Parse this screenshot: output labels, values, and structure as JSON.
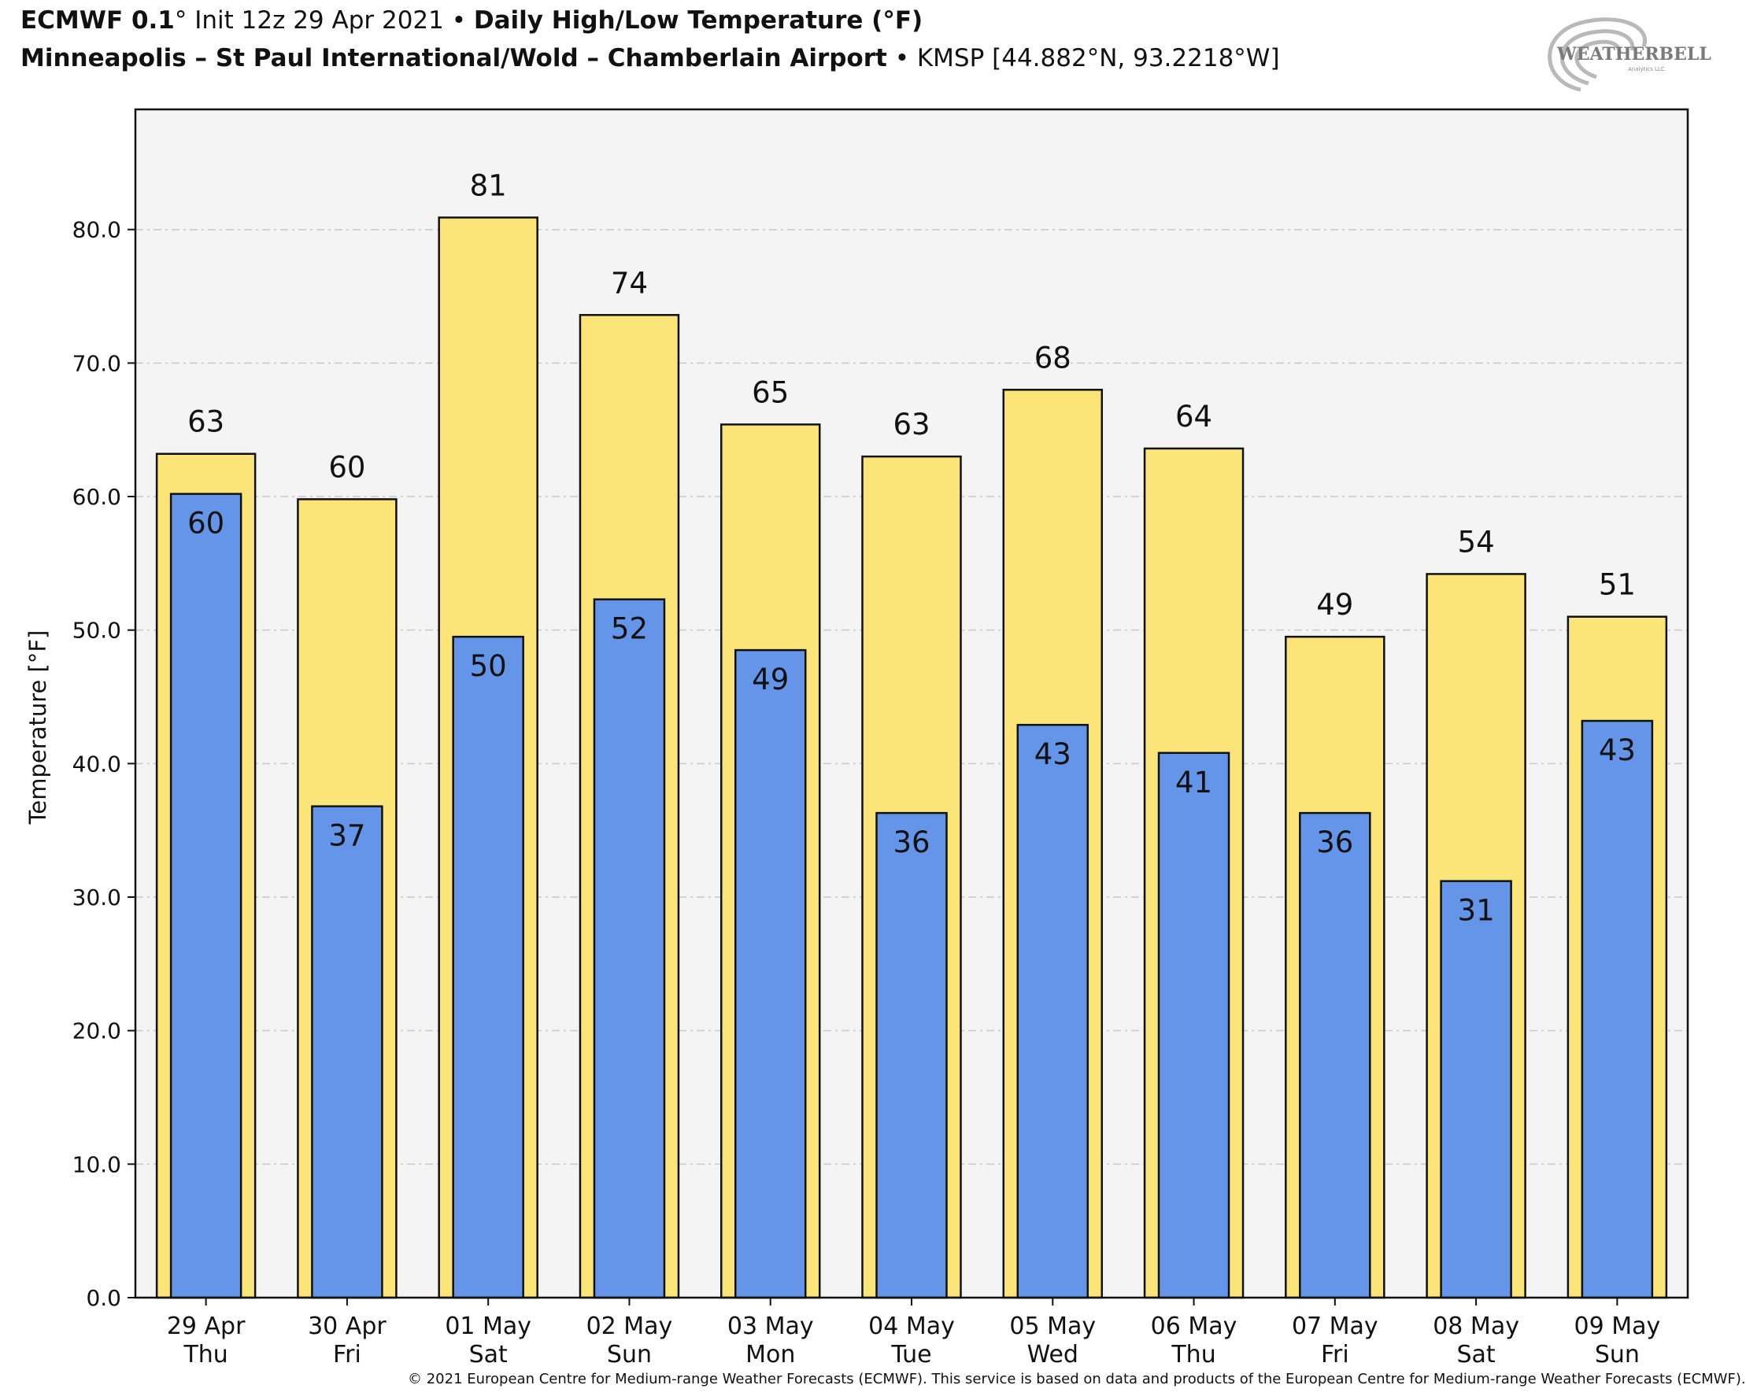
{
  "header": {
    "line1": [
      {
        "text": "ECMWF 0.1",
        "bold": true
      },
      {
        "text": "° Init 12z 29 Apr 2021 ",
        "bold": false
      },
      {
        "text": "• ",
        "bold": false
      },
      {
        "text": "Daily High/Low Temperature (°F)",
        "bold": true
      }
    ],
    "line2": [
      {
        "text": "Minneapolis – St Paul International/Wold – Chamberlain Airport",
        "bold": true
      },
      {
        "text": " • KMSP [44.882°N, 93.2218°W]",
        "bold": false
      }
    ]
  },
  "logo": {
    "text": "WEATHERBELL",
    "subtext": "Analytics LLC"
  },
  "footer": "© 2021 European Centre for Medium-range Weather Forecasts (ECMWF). This service is based on data and products of the European Centre for Medium-range Weather Forecasts (ECMWF).",
  "chart_data": {
    "type": "bar",
    "title": "Daily High/Low Temperature (°F)",
    "ylabel": "Temperature [°F]",
    "xlabel": "",
    "ylim": [
      0,
      89
    ],
    "yticks": [
      0,
      10,
      20,
      30,
      40,
      50,
      60,
      70,
      80
    ],
    "ytick_labels": [
      "0.0",
      "10.0",
      "20.0",
      "30.0",
      "40.0",
      "50.0",
      "60.0",
      "70.0",
      "80.0"
    ],
    "grid": "horizontal dashed",
    "categories": [
      {
        "date": "29 Apr",
        "day": "Thu"
      },
      {
        "date": "30 Apr",
        "day": "Fri"
      },
      {
        "date": "01 May",
        "day": "Sat"
      },
      {
        "date": "02 May",
        "day": "Sun"
      },
      {
        "date": "03 May",
        "day": "Mon"
      },
      {
        "date": "04 May",
        "day": "Tue"
      },
      {
        "date": "05 May",
        "day": "Wed"
      },
      {
        "date": "06 May",
        "day": "Thu"
      },
      {
        "date": "07 May",
        "day": "Fri"
      },
      {
        "date": "08 May",
        "day": "Sat"
      },
      {
        "date": "09 May",
        "day": "Sun"
      }
    ],
    "series": [
      {
        "key": "high",
        "color": "#fce578",
        "values": [
          63.2,
          59.8,
          80.9,
          73.6,
          65.4,
          63.0,
          68.0,
          63.6,
          49.5,
          54.2,
          51.0
        ],
        "labels": [
          "63",
          "60",
          "81",
          "74",
          "65",
          "63",
          "68",
          "64",
          "49",
          "54",
          "51"
        ]
      },
      {
        "key": "low",
        "color": "#6495e8",
        "values": [
          60.2,
          36.8,
          49.5,
          52.3,
          48.5,
          36.3,
          42.9,
          40.8,
          36.3,
          31.2,
          43.2
        ],
        "labels": [
          "60",
          "37",
          "50",
          "52",
          "49",
          "36",
          "43",
          "41",
          "36",
          "31",
          "43"
        ]
      }
    ],
    "colors": {
      "plot_background": "#f4f4f4",
      "grid": "#c8c8c8"
    }
  }
}
